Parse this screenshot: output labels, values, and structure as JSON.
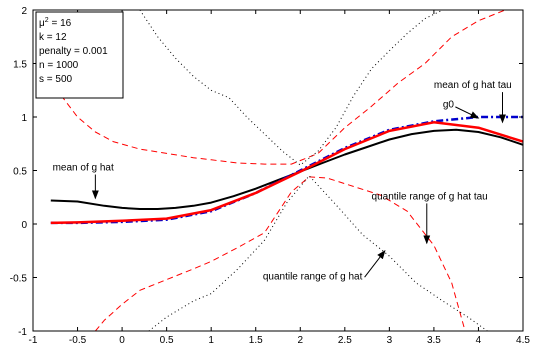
{
  "chart_data": {
    "type": "line",
    "title": "",
    "xlabel": "",
    "ylabel": "",
    "xlim": [
      -1,
      4.5
    ],
    "ylim": [
      -1,
      2
    ],
    "grid": false,
    "x_ticks": [
      -1,
      -0.5,
      0,
      0.5,
      1,
      1.5,
      2,
      2.5,
      3,
      3.5,
      4,
      4.5
    ],
    "x_tick_labels": [
      "-1",
      "-0.5",
      "0",
      "0.5",
      "1",
      "1.5",
      "2",
      "2.5",
      "3",
      "3.5",
      "4",
      "4.5"
    ],
    "y_ticks": [
      -1,
      -0.5,
      0,
      0.5,
      1,
      1.5,
      2
    ],
    "y_tick_labels": [
      "-1",
      "-0.5",
      "0",
      "0.5",
      "1",
      "1.5",
      "2"
    ],
    "params_box": [
      {
        "name": "μ",
        "sup": "2",
        "value": " = 16"
      },
      {
        "name": "k",
        "sup": "",
        "value": " = 12"
      },
      {
        "name": "penalty",
        "sup": "",
        "value": " = 0.001"
      },
      {
        "name": "n",
        "sup": "",
        "value": " = 1000"
      },
      {
        "name": "s",
        "sup": "",
        "value": " = 500"
      }
    ],
    "series": [
      {
        "id": "g0",
        "color": "#0000cc",
        "dash": "7,3,2,3",
        "width": 2.5,
        "x": [
          -0.8,
          -0.5,
          0,
          0.5,
          1,
          1.5,
          2,
          2.5,
          3,
          3.5,
          4,
          4.5
        ],
        "y": [
          0.01,
          0.01,
          0.02,
          0.04,
          0.12,
          0.29,
          0.5,
          0.71,
          0.88,
          0.96,
          1.0,
          1.0
        ]
      },
      {
        "id": "mean of g hat tau",
        "color": "#ff0000",
        "dash": "",
        "width": 2.5,
        "x": [
          -0.8,
          -0.5,
          0,
          0.5,
          1,
          1.5,
          2,
          2.5,
          3,
          3.5,
          4,
          4.5
        ],
        "y": [
          0.01,
          0.015,
          0.03,
          0.05,
          0.13,
          0.29,
          0.49,
          0.7,
          0.87,
          0.95,
          0.9,
          0.77
        ]
      },
      {
        "id": "mean of g hat",
        "color": "#000000",
        "dash": "",
        "width": 2,
        "x": [
          -0.8,
          -0.5,
          -0.2,
          0,
          0.2,
          0.4,
          0.6,
          0.8,
          1,
          1.25,
          1.5,
          1.75,
          2,
          2.25,
          2.5,
          2.75,
          3,
          3.25,
          3.5,
          3.75,
          4,
          4.25,
          4.5
        ],
        "y": [
          0.22,
          0.21,
          0.17,
          0.15,
          0.14,
          0.14,
          0.15,
          0.17,
          0.2,
          0.26,
          0.33,
          0.41,
          0.49,
          0.57,
          0.65,
          0.72,
          0.79,
          0.84,
          0.87,
          0.88,
          0.86,
          0.81,
          0.74
        ]
      },
      {
        "id": "quantile range of g hat tau (upper)",
        "color": "#ff0000",
        "dash": "6,4",
        "width": 1,
        "x": [
          -0.85,
          -0.7,
          -0.5,
          -0.3,
          -0.1,
          0.2,
          0.5,
          0.8,
          1,
          1.3,
          1.6,
          1.9,
          2.2,
          2.5,
          2.8,
          3.1,
          3.4,
          3.7,
          4,
          4.3,
          4.5
        ],
        "y": [
          1.55,
          1.22,
          1.0,
          0.86,
          0.77,
          0.7,
          0.66,
          0.62,
          0.6,
          0.57,
          0.56,
          0.56,
          0.66,
          0.9,
          1.1,
          1.32,
          1.5,
          1.75,
          1.9,
          2.0,
          2.05
        ]
      },
      {
        "id": "quantile range of g hat tau (lower)",
        "color": "#ff0000",
        "dash": "6,4",
        "width": 1,
        "x": [
          -0.3,
          -0.2,
          0,
          0.2,
          0.5,
          0.8,
          1,
          1.3,
          1.6,
          1.9,
          2.1,
          2.3,
          2.6,
          2.9,
          3.2,
          3.5,
          3.7,
          3.85
        ],
        "y": [
          -1.0,
          -0.9,
          -0.75,
          -0.62,
          -0.52,
          -0.42,
          -0.35,
          -0.22,
          -0.08,
          0.3,
          0.44,
          0.43,
          0.35,
          0.27,
          0.12,
          -0.2,
          -0.55,
          -1.0
        ]
      },
      {
        "id": "quantile range of g hat (upper)",
        "color": "#000000",
        "dash": "1,3",
        "width": 1,
        "x": [
          0.2,
          0.4,
          0.6,
          0.8,
          1,
          1.2,
          1.4,
          1.6,
          1.8,
          2.0,
          2.2,
          2.4,
          2.6,
          2.8,
          3.0,
          3.2,
          3.4,
          3.6
        ],
        "y": [
          2.0,
          1.75,
          1.55,
          1.38,
          1.25,
          1.18,
          1.0,
          0.84,
          0.68,
          0.55,
          0.68,
          0.9,
          1.2,
          1.45,
          1.62,
          1.78,
          1.92,
          2.0
        ]
      },
      {
        "id": "quantile range of g hat (lower)",
        "color": "#000000",
        "dash": "1,3",
        "width": 1,
        "x": [
          0.3,
          0.5,
          0.8,
          1,
          1.3,
          1.6,
          1.85,
          2.1,
          2.4,
          2.7,
          3.0,
          3.3,
          3.6,
          3.9,
          4.1
        ],
        "y": [
          -1.0,
          -0.87,
          -0.72,
          -0.65,
          -0.42,
          -0.15,
          0.2,
          0.45,
          0.18,
          -0.1,
          -0.3,
          -0.55,
          -0.72,
          -0.88,
          -1.0
        ]
      }
    ],
    "annotations": [
      {
        "text": "mean of g hat tau",
        "tx": 3.5,
        "ty": 1.27,
        "ax": 4.27,
        "ay": 0.95
      },
      {
        "text": "g0",
        "tx": 3.6,
        "ty": 1.09,
        "ax": 4.0,
        "ay": 0.99
      },
      {
        "text": "mean of g hat",
        "tx": -0.78,
        "ty": 0.5,
        "ax": -0.3,
        "ay": 0.24
      },
      {
        "text": "quantile range of g hat tau",
        "tx": 2.8,
        "ty": 0.23,
        "ax": 3.42,
        "ay": -0.18
      },
      {
        "text": "quantile range of g hat",
        "tx": 1.58,
        "ty": -0.52,
        "ax": 2.95,
        "ay": -0.25
      }
    ]
  }
}
